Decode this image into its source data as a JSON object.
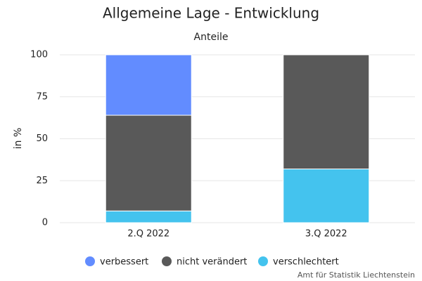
{
  "chart_data": {
    "type": "stacked-bar",
    "title": "Allgemeine Lage - Entwicklung",
    "subtitle": "Anteile",
    "y_label": "in %",
    "credit": "Amt für Statistik Liechtenstein",
    "categories": [
      "2.Q 2022",
      "3.Q 2022"
    ],
    "series": [
      {
        "name": "verschlechtert",
        "color": "#44c3ee",
        "values": [
          7,
          32
        ]
      },
      {
        "name": "nicht verändert",
        "color": "#595959",
        "values": [
          57,
          68
        ]
      },
      {
        "name": "verbessert",
        "color": "#628cff",
        "values": [
          36,
          0
        ]
      }
    ],
    "legend_order": [
      2,
      1,
      0
    ],
    "ylim": [
      0,
      100
    ],
    "yticks": [
      0,
      25,
      50,
      75,
      100
    ],
    "grid": true
  }
}
